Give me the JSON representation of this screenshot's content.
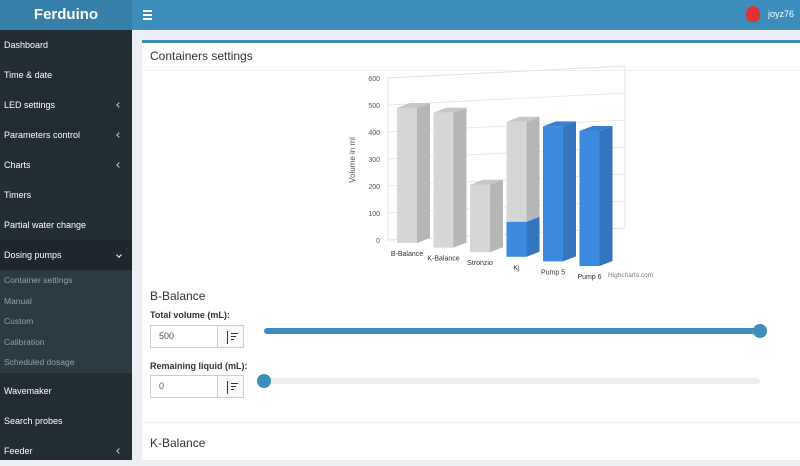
{
  "header": {
    "brand": "Ferduino",
    "user": "joyz76"
  },
  "sidebar": {
    "top": [
      "Dashboard",
      "Time & date",
      "LED settings",
      "Parameters control",
      "Charts",
      "Timers",
      "Partial water change"
    ],
    "active": "Dosing pumps",
    "submenu": [
      "Container settings",
      "Manual",
      "Custom",
      "Calibration",
      "Scheduled dosage"
    ],
    "bottom": [
      "Wavemaker",
      "Search probes",
      "Feeder"
    ]
  },
  "panel": {
    "title": "Containers settings"
  },
  "chart_data": {
    "type": "bar",
    "stacked": true,
    "y_label": "Volume in ml",
    "credit": "Highcharts.com",
    "categories": [
      "B-Balance",
      "K-Balance",
      "Stronzio",
      "Kj",
      "Pump 5",
      "Pump 6"
    ],
    "series": [
      {
        "color": "#3c8ae0",
        "values": [
          0,
          0,
          0,
          130,
          500,
          500
        ]
      },
      {
        "color": "#d4d6d8",
        "values": [
          500,
          500,
          250,
          370,
          0,
          0
        ]
      }
    ],
    "ylim": [
      0,
      600
    ],
    "yticks": [
      0,
      100,
      200,
      300,
      400,
      500,
      600
    ],
    "grid": true
  },
  "containers": [
    {
      "name": "B-Balance",
      "fields": [
        {
          "label": "Total volume (mL):",
          "value": "500"
        },
        {
          "label": "Remaining liquid (mL):",
          "value": "0"
        }
      ]
    },
    {
      "name": "K-Balance"
    }
  ]
}
